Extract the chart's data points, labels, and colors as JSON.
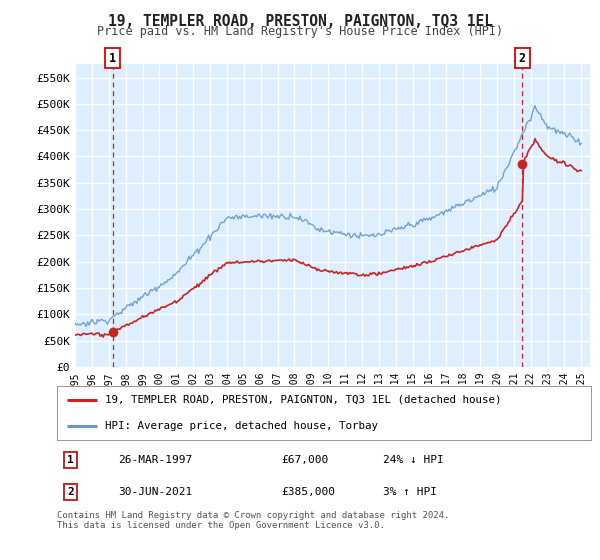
{
  "title": "19, TEMPLER ROAD, PRESTON, PAIGNTON, TQ3 1EL",
  "subtitle": "Price paid vs. HM Land Registry's House Price Index (HPI)",
  "bg_color": "#ddeeff",
  "grid_color": "#ffffff",
  "hpi_line_color": "#6699cc",
  "price_line_color": "#cc2222",
  "marker_color": "#cc2222",
  "dashed_vline_color": "#cc2222",
  "ylabel_ticks": [
    "£0",
    "£50K",
    "£100K",
    "£150K",
    "£200K",
    "£250K",
    "£300K",
    "£350K",
    "£400K",
    "£450K",
    "£500K",
    "£550K"
  ],
  "ytick_values": [
    0,
    50000,
    100000,
    150000,
    200000,
    250000,
    300000,
    350000,
    400000,
    450000,
    500000,
    550000
  ],
  "sale1_year": 1997.23,
  "sale1_price": 67000,
  "sale2_year": 2021.5,
  "sale2_price": 385000,
  "legend_label1": "19, TEMPLER ROAD, PRESTON, PAIGNTON, TQ3 1EL (detached house)",
  "legend_label2": "HPI: Average price, detached house, Torbay",
  "note1_label": "1",
  "note1_date": "26-MAR-1997",
  "note1_price": "£67,000",
  "note1_hpi": "24% ↓ HPI",
  "note2_label": "2",
  "note2_date": "30-JUN-2021",
  "note2_price": "£385,000",
  "note2_hpi": "3% ↑ HPI",
  "footer": "Contains HM Land Registry data © Crown copyright and database right 2024.\nThis data is licensed under the Open Government Licence v3.0.",
  "xtick_years": [
    1995,
    1996,
    1997,
    1998,
    1999,
    2000,
    2001,
    2002,
    2003,
    2004,
    2005,
    2006,
    2007,
    2008,
    2009,
    2010,
    2011,
    2012,
    2013,
    2014,
    2015,
    2016,
    2017,
    2018,
    2019,
    2020,
    2021,
    2022,
    2023,
    2024,
    2025
  ]
}
